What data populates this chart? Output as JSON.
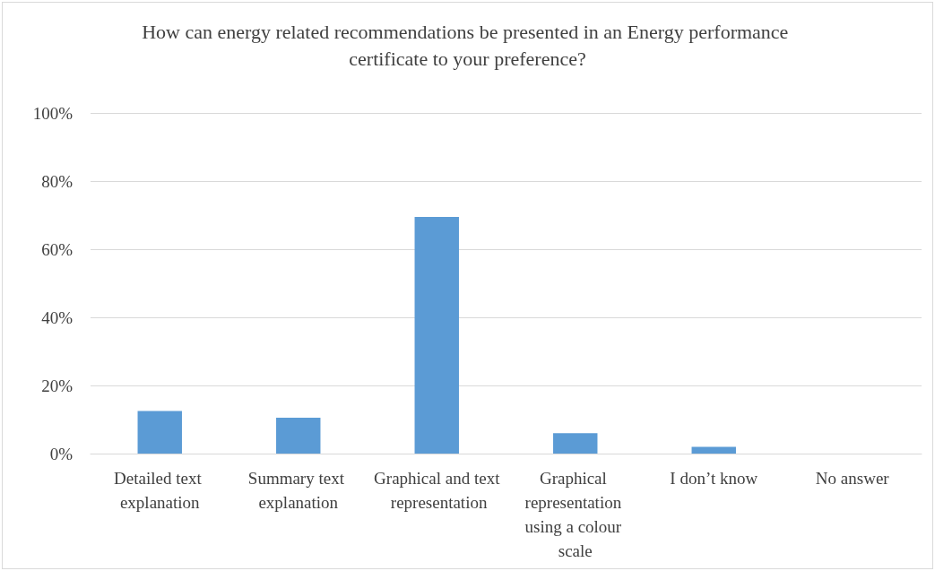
{
  "chart_data": {
    "type": "bar",
    "title": "How can energy related recommendations be presented in an Energy performance certificate to your preference?",
    "categories": [
      "Detailed text explanation",
      "Summary text explanation",
      "Graphical and text representation",
      "Graphical representation using a colour scale",
      "I don’t know",
      "No answer"
    ],
    "values": [
      12.5,
      10.5,
      69.5,
      6,
      2,
      0
    ],
    "color": "#5b9bd5",
    "ylim": [
      0,
      100
    ],
    "yticks": [
      {
        "value": 0,
        "label": "0%"
      },
      {
        "value": 20,
        "label": "20%"
      },
      {
        "value": 40,
        "label": "40%"
      },
      {
        "value": 60,
        "label": "60%"
      },
      {
        "value": 80,
        "label": "80%"
      },
      {
        "value": 100,
        "label": "100%"
      }
    ],
    "grid": "y",
    "legend": false
  }
}
